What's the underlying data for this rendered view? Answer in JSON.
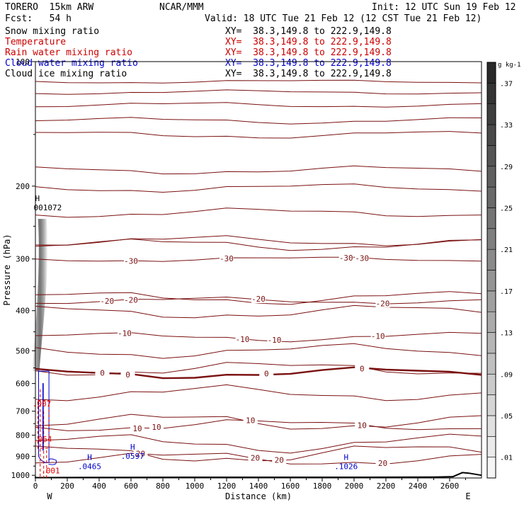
{
  "header": {
    "model": "TORERO  15km ARW",
    "center": "NCAR/MMM",
    "init": "Init: 12 UTC Sun 19 Feb 12",
    "fcst": "Fcst:   54 h",
    "valid": "Valid: 18 UTC Tue 21 Feb 12 (12 CST Tue 21 Feb 12)"
  },
  "fields": [
    {
      "label": "Snow mixing ratio",
      "xy": "XY=  38.3,149.8 to 222.9,149.8",
      "color": "#000000"
    },
    {
      "label": "Temperature",
      "xy": "XY=  38.3,149.8 to 222.9,149.8",
      "color": "#cc0000"
    },
    {
      "label": "Rain water mixing ratio",
      "xy": "XY=  38.3,149.8 to 222.9,149.8",
      "color": "#cc0000"
    },
    {
      "label": "Cloud water mixing ratio",
      "xy": "XY=  38.3,149.8 to 222.9,149.8",
      "color": "#0000cc"
    },
    {
      "label": "Cloud ice mixing ratio",
      "xy": "XY=  38.3,149.8 to 222.9,149.8",
      "color": "#000000"
    }
  ],
  "chart_data": {
    "type": "contour",
    "xlabel": "Distance (km)",
    "ylabel": "Pressure (hPa)",
    "xlim": [
      0,
      2800
    ],
    "ylim": [
      1015,
      100
    ],
    "y_scale": "log",
    "x_ticks": [
      0,
      200,
      400,
      600,
      800,
      1000,
      1200,
      1400,
      1600,
      1800,
      2000,
      2200,
      2400,
      2600
    ],
    "y_ticks": [
      100,
      200,
      300,
      400,
      500,
      600,
      700,
      800,
      900,
      1000
    ],
    "x_end_labels": [
      "W",
      "E"
    ],
    "temperature_contours": [
      {
        "level": -30,
        "p": 300,
        "labels_at_km": [
          600,
          1200,
          1950,
          2050
        ]
      },
      {
        "level": -20,
        "p": 378,
        "labels_at_km": [
          450,
          600,
          1400,
          2180
        ]
      },
      {
        "level": -10,
        "p": 462,
        "labels_at_km": [
          560,
          1300,
          1500,
          2150
        ]
      },
      {
        "level": 0,
        "p": 565,
        "labels_at_km": [
          420,
          580,
          1450,
          2050
        ],
        "bold": true
      },
      {
        "level": 10,
        "p": 755,
        "labels_at_km": [
          640,
          760,
          1350,
          2050
        ]
      },
      {
        "level": 20,
        "p": 910,
        "labels_at_km": [
          660,
          1380,
          1530,
          2180
        ]
      }
    ],
    "cloud_water_maxima": [
      {
        "label": "H",
        "value": ".0465",
        "km": 340,
        "p": 940
      },
      {
        "label": "H",
        "value": ".0597",
        "km": 610,
        "p": 888
      },
      {
        "label": "H",
        "value": ".1026",
        "km": 1950,
        "p": 940
      }
    ],
    "snow_maximum": {
      "label": "H",
      "value": "001072",
      "km": 60,
      "p": 225
    },
    "rain_labels": [
      {
        "value": ".007",
        "km": 40,
        "p": 682
      },
      {
        "value": ".064",
        "km": 45,
        "p": 830
      },
      {
        "value": ".001",
        "km": 95,
        "p": 990
      }
    ],
    "colorbar": {
      "unit": "g kg-1",
      "tick_labels": [
        ".01",
        ".05",
        ".09",
        ".13",
        ".17",
        ".21",
        ".25",
        ".29",
        ".33",
        ".37"
      ]
    }
  }
}
